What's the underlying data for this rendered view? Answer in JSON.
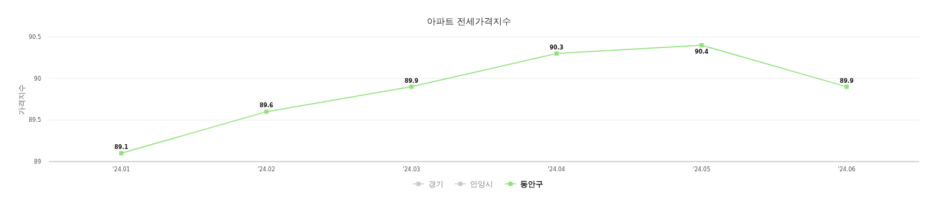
{
  "chart_data": {
    "type": "line",
    "title": "아파트 전세가격지수",
    "ylabel": "가격지수",
    "categories": [
      "'24.01",
      "'24.02",
      "'24.03",
      "'24.04",
      "'24.05",
      "'24.06"
    ],
    "series": [
      {
        "name": "경기",
        "color": "#cccccc",
        "values": [
          null,
          null,
          null,
          null,
          null,
          null
        ]
      },
      {
        "name": "안양시",
        "color": "#cccccc",
        "values": [
          null,
          null,
          null,
          null,
          null,
          null
        ]
      },
      {
        "name": "동안구",
        "color": "#91e27c",
        "values": [
          89.1,
          89.6,
          89.9,
          90.3,
          90.4,
          89.9
        ]
      }
    ],
    "ylim": [
      89,
      90.5
    ],
    "yticks": [
      89,
      89.5,
      90,
      90.5
    ],
    "grid": "y",
    "legend": "bottom",
    "marker": "square",
    "data_labels": true
  }
}
